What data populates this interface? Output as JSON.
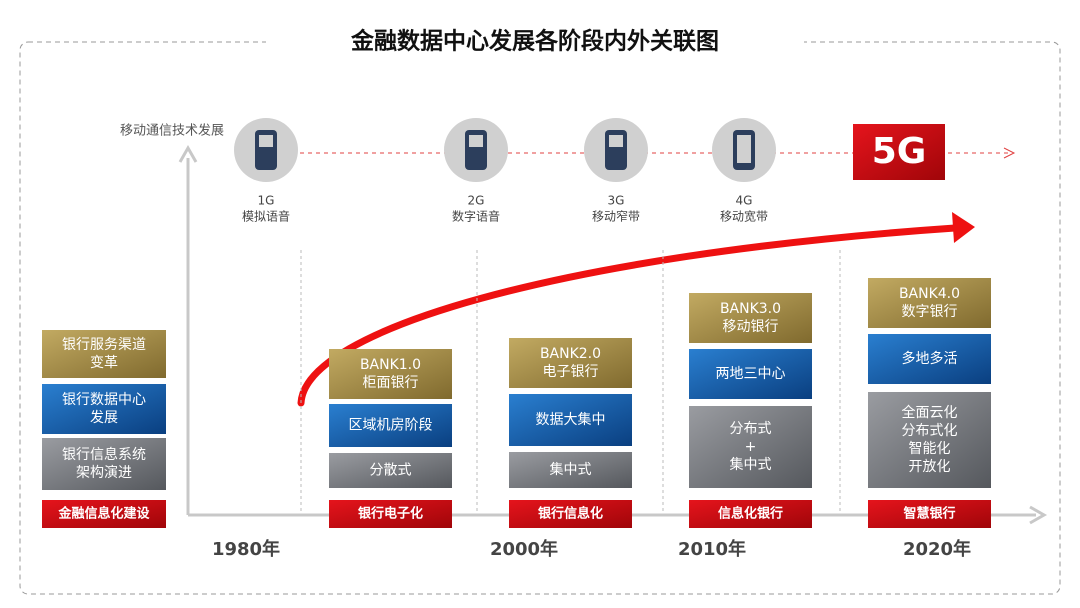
{
  "title": "金融数据中心发展各阶段内外关联图",
  "mobile_axis_label": "移动通信技术发展",
  "mobile_generations": [
    {
      "gen": "1G",
      "label": "模拟语音"
    },
    {
      "gen": "2G",
      "label": "数字语音"
    },
    {
      "gen": "3G",
      "label": "移动窄带"
    },
    {
      "gen": "4G",
      "label": "移动宽带"
    }
  ],
  "fiveg": "5G",
  "legend": {
    "items": [
      [
        "银行服务渠道",
        "变革"
      ],
      [
        "银行数据中心",
        "发展"
      ],
      [
        "银行信息系统",
        "架构演进"
      ]
    ],
    "footer": "金融信息化建设"
  },
  "stages": [
    {
      "channel": [
        "BANK1.0",
        "柜面银行"
      ],
      "datacenter": [
        "区域机房阶段"
      ],
      "architecture": [
        "分散式"
      ],
      "footer": "银行电子化"
    },
    {
      "channel": [
        "BANK2.0",
        "电子银行"
      ],
      "datacenter": [
        "数据大集中"
      ],
      "architecture": [
        "集中式"
      ],
      "footer": "银行信息化"
    },
    {
      "channel": [
        "BANK3.0",
        "移动银行"
      ],
      "datacenter": [
        "两地三中心"
      ],
      "architecture": [
        "分布式",
        "+",
        "集中式"
      ],
      "footer": "信息化银行"
    },
    {
      "channel": [
        "BANK4.0",
        "数字银行"
      ],
      "datacenter": [
        "多地多活"
      ],
      "architecture": [
        "全面云化",
        "分布式化",
        "智能化",
        "开放化"
      ],
      "footer": "智慧银行"
    }
  ],
  "years": [
    "1980年",
    "2000年",
    "2010年",
    "2020年"
  ]
}
